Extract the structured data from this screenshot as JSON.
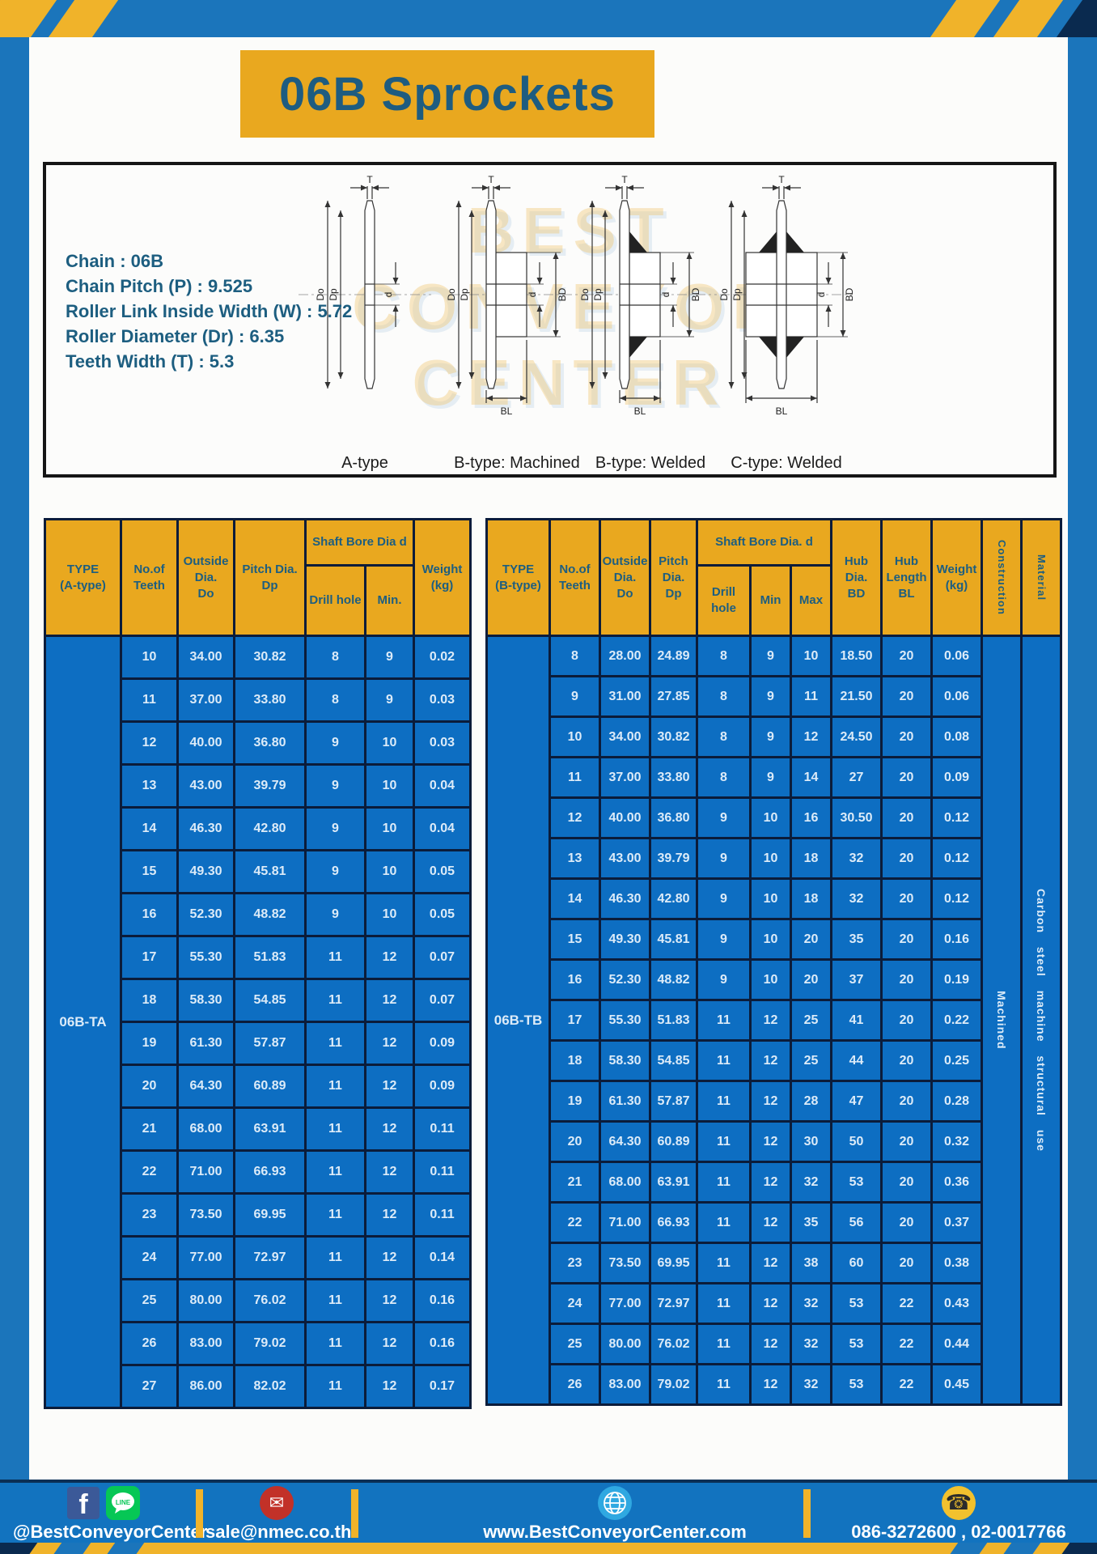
{
  "title": "06B Sprockets",
  "colors": {
    "frame_blue": "#1B75BB",
    "accent_yellow": "#F0B32A",
    "header_amber": "#E9A81F",
    "cell_blue": "#0D6EC2",
    "border_navy": "#0B1C3A",
    "heading_teal": "#1D5E80",
    "title_teal": "#1E5C80",
    "footer_blue": "#1273BF",
    "body_text": "#DCEBF8",
    "facebook_blue": "#3B5998",
    "line_green": "#06C755",
    "email_red": "#C23128",
    "globe_blue": "#2FA8E1",
    "phone_yellow": "#F2C12E"
  },
  "specs": [
    {
      "label": "Chain",
      "value": "06B"
    },
    {
      "label": "Chain Pitch (P)",
      "value": "9.525"
    },
    {
      "label": "Roller Link Inside Width (W)",
      "value": "5.72"
    },
    {
      "label": "Roller Diameter (Dr)",
      "value": "6.35"
    },
    {
      "label": "Teeth Width (T)",
      "value": "5.3"
    }
  ],
  "diagrams": {
    "watermark": [
      "BEST",
      "CONVEYOR",
      "CENTER"
    ],
    "dims": {
      "t": "T",
      "outside": "Do",
      "pitch": "Dp",
      "bore": "d",
      "hub": "BD",
      "hub_len": "BL"
    },
    "items": [
      {
        "id": "a-type",
        "label": "A-type"
      },
      {
        "id": "b-machined",
        "label": "B-type: Machined"
      },
      {
        "id": "b-welded",
        "label": "B-type: Welded"
      },
      {
        "id": "c-welded",
        "label": "C-type: Welded"
      }
    ]
  },
  "table_a": {
    "headers": {
      "type": [
        "TYPE",
        "(A-type)"
      ],
      "teeth": [
        "No.of",
        "Teeth"
      ],
      "outside": [
        "Outside",
        "Dia.",
        "Do"
      ],
      "pitch": [
        "Pitch Dia.",
        "Dp"
      ],
      "shaft_bore": "Shaft Bore Dia d",
      "drill": "Drill hole",
      "min": "Min.",
      "weight": [
        "Weight",
        "(kg)"
      ]
    },
    "type_value": "06B-TA",
    "rows": [
      [
        "10",
        "34.00",
        "30.82",
        "8",
        "9",
        "0.02"
      ],
      [
        "11",
        "37.00",
        "33.80",
        "8",
        "9",
        "0.03"
      ],
      [
        "12",
        "40.00",
        "36.80",
        "9",
        "10",
        "0.03"
      ],
      [
        "13",
        "43.00",
        "39.79",
        "9",
        "10",
        "0.04"
      ],
      [
        "14",
        "46.30",
        "42.80",
        "9",
        "10",
        "0.04"
      ],
      [
        "15",
        "49.30",
        "45.81",
        "9",
        "10",
        "0.05"
      ],
      [
        "16",
        "52.30",
        "48.82",
        "9",
        "10",
        "0.05"
      ],
      [
        "17",
        "55.30",
        "51.83",
        "11",
        "12",
        "0.07"
      ],
      [
        "18",
        "58.30",
        "54.85",
        "11",
        "12",
        "0.07"
      ],
      [
        "19",
        "61.30",
        "57.87",
        "11",
        "12",
        "0.09"
      ],
      [
        "20",
        "64.30",
        "60.89",
        "11",
        "12",
        "0.09"
      ],
      [
        "21",
        "68.00",
        "63.91",
        "11",
        "12",
        "0.11"
      ],
      [
        "22",
        "71.00",
        "66.93",
        "11",
        "12",
        "0.11"
      ],
      [
        "23",
        "73.50",
        "69.95",
        "11",
        "12",
        "0.11"
      ],
      [
        "24",
        "77.00",
        "72.97",
        "11",
        "12",
        "0.14"
      ],
      [
        "25",
        "80.00",
        "76.02",
        "11",
        "12",
        "0.16"
      ],
      [
        "26",
        "83.00",
        "79.02",
        "11",
        "12",
        "0.16"
      ],
      [
        "27",
        "86.00",
        "82.02",
        "11",
        "12",
        "0.17"
      ]
    ]
  },
  "table_b": {
    "headers": {
      "type": [
        "TYPE",
        "(B-type)"
      ],
      "teeth": [
        "No.of",
        "Teeth"
      ],
      "outside": [
        "Outside",
        "Dia.",
        "Do"
      ],
      "pitch": [
        "Pitch",
        "Dia.",
        "Dp"
      ],
      "shaft_bore": "Shaft Bore Dia. d",
      "drill": "Drill hole",
      "min": "Min",
      "max": "Max",
      "hub_dia": [
        "Hub",
        "Dia.",
        "BD"
      ],
      "hub_length": [
        "Hub",
        "Length",
        "BL"
      ],
      "weight": [
        "Weight",
        "(kg)"
      ],
      "construction": "Construction",
      "material": "Material"
    },
    "type_value": "06B-TB",
    "construction_value": "Machined",
    "material_value": "Carbon steel machine structural use",
    "rows": [
      [
        "8",
        "28.00",
        "24.89",
        "8",
        "9",
        "10",
        "18.50",
        "20",
        "0.06"
      ],
      [
        "9",
        "31.00",
        "27.85",
        "8",
        "9",
        "11",
        "21.50",
        "20",
        "0.06"
      ],
      [
        "10",
        "34.00",
        "30.82",
        "8",
        "9",
        "12",
        "24.50",
        "20",
        "0.08"
      ],
      [
        "11",
        "37.00",
        "33.80",
        "8",
        "9",
        "14",
        "27",
        "20",
        "0.09"
      ],
      [
        "12",
        "40.00",
        "36.80",
        "9",
        "10",
        "16",
        "30.50",
        "20",
        "0.12"
      ],
      [
        "13",
        "43.00",
        "39.79",
        "9",
        "10",
        "18",
        "32",
        "20",
        "0.12"
      ],
      [
        "14",
        "46.30",
        "42.80",
        "9",
        "10",
        "18",
        "32",
        "20",
        "0.12"
      ],
      [
        "15",
        "49.30",
        "45.81",
        "9",
        "10",
        "20",
        "35",
        "20",
        "0.16"
      ],
      [
        "16",
        "52.30",
        "48.82",
        "9",
        "10",
        "20",
        "37",
        "20",
        "0.19"
      ],
      [
        "17",
        "55.30",
        "51.83",
        "11",
        "12",
        "25",
        "41",
        "20",
        "0.22"
      ],
      [
        "18",
        "58.30",
        "54.85",
        "11",
        "12",
        "25",
        "44",
        "20",
        "0.25"
      ],
      [
        "19",
        "61.30",
        "57.87",
        "11",
        "12",
        "28",
        "47",
        "20",
        "0.28"
      ],
      [
        "20",
        "64.30",
        "60.89",
        "11",
        "12",
        "30",
        "50",
        "20",
        "0.32"
      ],
      [
        "21",
        "68.00",
        "63.91",
        "11",
        "12",
        "32",
        "53",
        "20",
        "0.36"
      ],
      [
        "22",
        "71.00",
        "66.93",
        "11",
        "12",
        "35",
        "56",
        "20",
        "0.37"
      ],
      [
        "23",
        "73.50",
        "69.95",
        "11",
        "12",
        "38",
        "60",
        "20",
        "0.38"
      ],
      [
        "24",
        "77.00",
        "72.97",
        "11",
        "12",
        "32",
        "53",
        "22",
        "0.43"
      ],
      [
        "25",
        "80.00",
        "76.02",
        "11",
        "12",
        "32",
        "53",
        "22",
        "0.44"
      ],
      [
        "26",
        "83.00",
        "79.02",
        "11",
        "12",
        "32",
        "53",
        "22",
        "0.45"
      ]
    ]
  },
  "footer": {
    "social_handle": "@BestConveyorCenter",
    "email": "sale@nmec.co.th",
    "website": "www.BestConveyorCenter.com",
    "phone": "086-3272600 , 02-0017766",
    "facebook_icon_text": "f",
    "line_icon_text": "LINE",
    "email_icon_glyph": "✉",
    "phone_icon_glyph": "☎"
  }
}
